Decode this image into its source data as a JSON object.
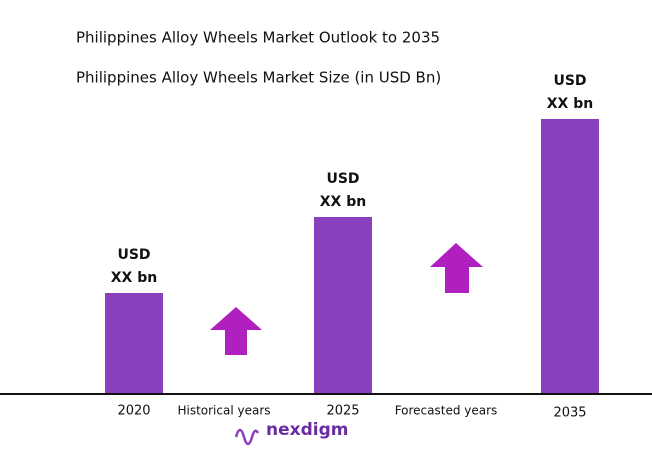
{
  "chart_data": {
    "type": "bar",
    "title": "Philippines Alloy Wheels Market Outlook to 2035",
    "subtitle": "Philippines Alloy Wheels Market Size (in USD Bn)",
    "categories": [
      "2020",
      "2025",
      "2035"
    ],
    "values": [
      100,
      176,
      274
    ],
    "bar_labels": [
      [
        "USD",
        "XX bn"
      ],
      [
        "USD",
        "XX bn"
      ],
      [
        "USD",
        "XX bn"
      ]
    ],
    "color": "#8940bd",
    "period_labels": [
      "Historical years",
      "Forecasted years"
    ],
    "logo": "nexdigm"
  }
}
